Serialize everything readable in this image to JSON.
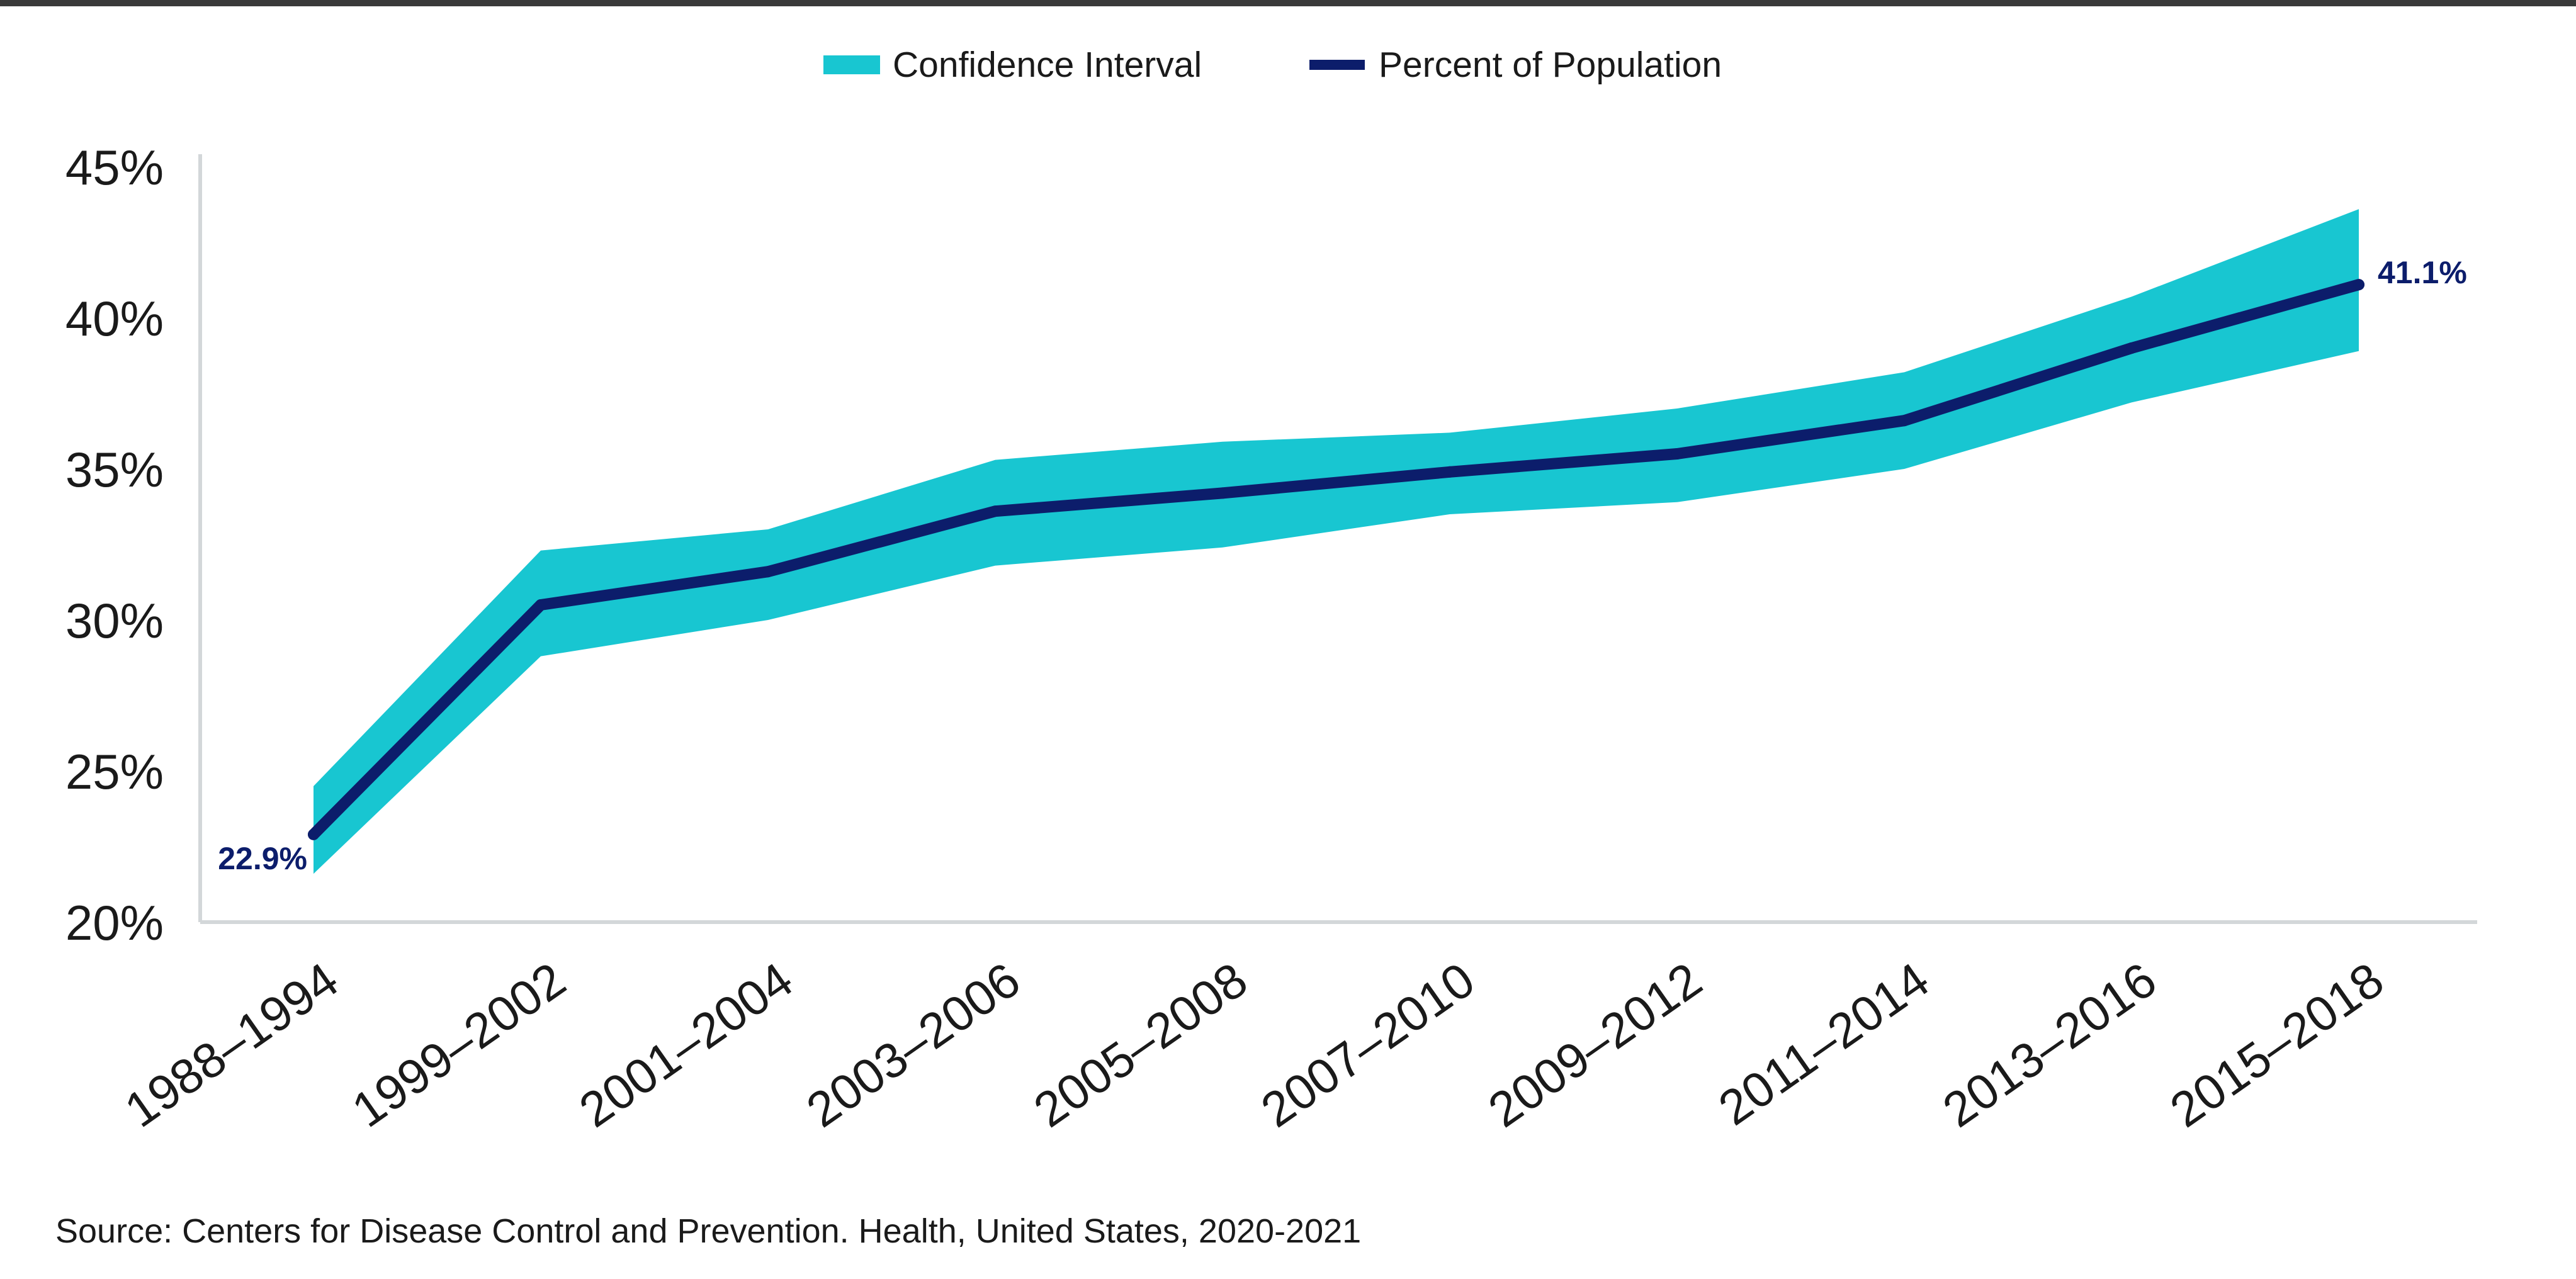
{
  "colors": {
    "band": "#18c6d1",
    "line": "#0c1d6b",
    "axis": "#d3d7d9",
    "text": "#1a1a1a",
    "label": "#0c1d6b"
  },
  "chart_data": {
    "type": "line",
    "categories": [
      "1988–1994",
      "1999–2002",
      "2001–2004",
      "2003–2006",
      "2005–2008",
      "2007–2010",
      "2009–2012",
      "2011–2014",
      "2013–2016",
      "2015–2018"
    ],
    "series": [
      {
        "name": "Percent of Population",
        "values": [
          22.9,
          30.5,
          31.6,
          33.6,
          34.2,
          34.9,
          35.5,
          36.6,
          39.0,
          41.1
        ]
      }
    ],
    "confidence_interval": {
      "name": "Confidence Interval",
      "upper": [
        24.5,
        32.3,
        33.0,
        35.3,
        35.9,
        36.2,
        37.0,
        38.2,
        40.7,
        43.6
      ],
      "lower": [
        21.6,
        28.8,
        30.0,
        31.8,
        32.4,
        33.5,
        33.9,
        35.0,
        37.2,
        38.9
      ]
    },
    "data_labels": [
      {
        "index": 0,
        "text": "22.9%"
      },
      {
        "index": 9,
        "text": "41.1%"
      }
    ],
    "ylim": [
      20,
      45
    ],
    "yticks": [
      "20%",
      "25%",
      "30%",
      "35%",
      "40%",
      "45%"
    ],
    "ytick_values": [
      20,
      25,
      30,
      35,
      40,
      45
    ],
    "grid": false,
    "legend_position": "top-center",
    "title": "",
    "xlabel": "",
    "ylabel": ""
  },
  "legend": {
    "items": [
      {
        "label": "Confidence Interval",
        "icon": "swatch-band"
      },
      {
        "label": "Percent of Population",
        "icon": "swatch-line"
      }
    ]
  },
  "source": "Source: Centers for Disease Control and Prevention. Health, United States, 2020-2021"
}
